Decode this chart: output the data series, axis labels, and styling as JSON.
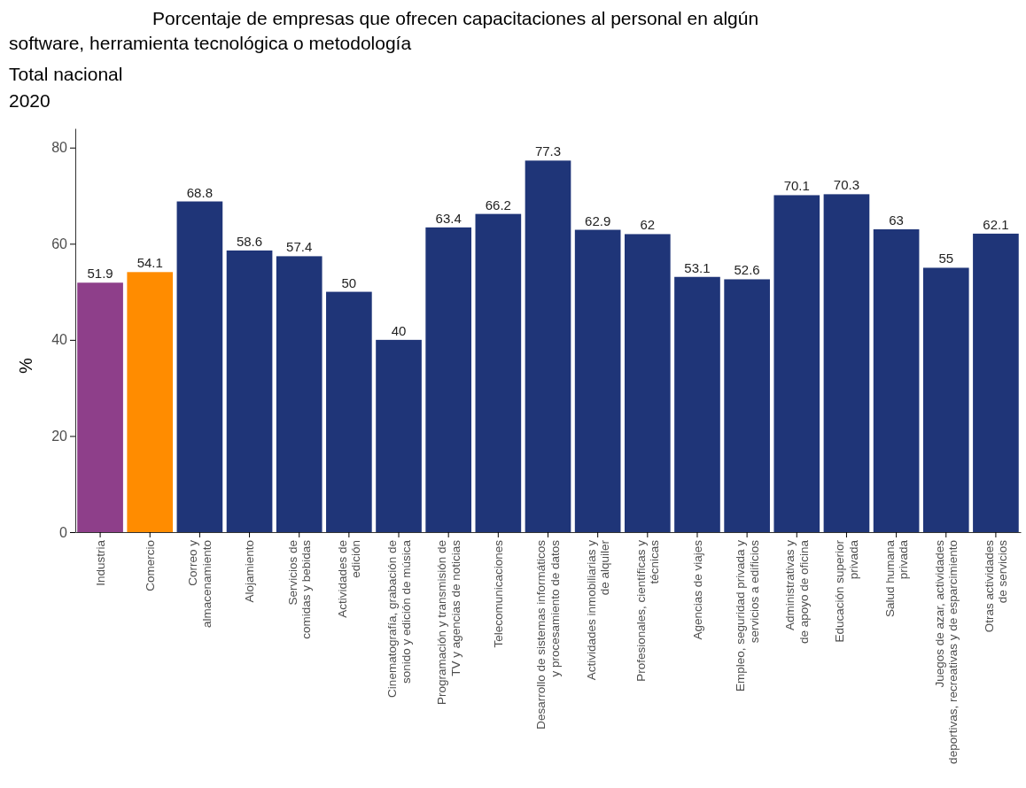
{
  "chart_data": {
    "type": "bar",
    "title": "Porcentaje de empresas que ofrecen capacitaciones al personal en algún\nsoftware, herramienta tecnológica o metodología",
    "subtitle": "Total nacional\n2020",
    "ylabel": "%",
    "categories": [
      "Industria",
      "Comercio",
      "Correo y\nalmacenamiento",
      "Alojamiento",
      "Servicios de\ncomidas y bebidas",
      "Actividades de\nedición",
      "Cinematografía, grabación de\nsonido y edición de música",
      "Programación y transmisión de\nTV y agencias de noticias",
      "Telecomunicaciones",
      "Desarrollo de sistemas informáticos\ny procesamiento de datos",
      "Actividades inmobiliarias y\nde alquiler",
      "Profesionales, científicas y\ntécnicas",
      "Agencias de viajes",
      "Empleo, seguridad privada y\nservicios a edificios",
      "Administrativas y\nde apoyo de oficina",
      "Educación superior\nprivada",
      "Salud humana\nprivada",
      "Juegos de azar, actividades\ndeportivas, recreativas y de esparcimiento",
      "Otras actividades\nde servicios"
    ],
    "values": [
      51.9,
      54.1,
      68.8,
      58.6,
      57.4,
      50,
      40,
      63.4,
      66.2,
      77.3,
      62.9,
      62,
      53.1,
      52.6,
      70.1,
      70.3,
      63,
      55,
      62.1
    ],
    "colors": [
      "#8e3f8a",
      "#ff8c00",
      "#1f3578",
      "#1f3578",
      "#1f3578",
      "#1f3578",
      "#1f3578",
      "#1f3578",
      "#1f3578",
      "#1f3578",
      "#1f3578",
      "#1f3578",
      "#1f3578",
      "#1f3578",
      "#1f3578",
      "#1f3578",
      "#1f3578",
      "#1f3578",
      "#1f3578"
    ],
    "ylim": [
      0,
      84
    ],
    "yticks": [
      0,
      20,
      40,
      60,
      80
    ],
    "grid": false,
    "data_labels": true
  }
}
